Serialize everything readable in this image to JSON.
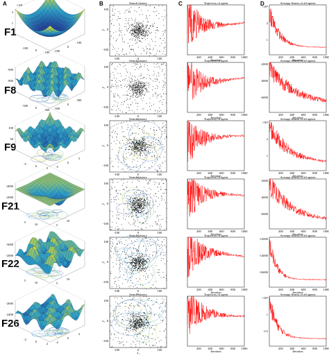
{
  "column_letters": [
    "A",
    "B",
    "C",
    "D"
  ],
  "rows": [
    "F1",
    "F8",
    "F9",
    "F21",
    "F22",
    "F26"
  ],
  "panel_titles": {
    "history": "Search history",
    "trajectory": "Trajectory of agent",
    "average": "Average fitness of all agents"
  },
  "axis_labels": {
    "iteration": "Iteration",
    "x1": "x₁",
    "x2": "x₂"
  },
  "colors": {
    "line": "#ff0000",
    "scatter": "#000000",
    "surface_low": "#1a2a8a",
    "surface_mid": "#2aa0c8",
    "surface_high": "#f5e61e"
  },
  "chart_data": [
    {
      "type": "surface",
      "row": "F1",
      "zlabel_exp": "×10⁴",
      "z_ticks": [
        "2",
        "1"
      ],
      "xy_ticks": [
        "-100",
        "0",
        "100"
      ]
    },
    {
      "type": "surface",
      "row": "F8",
      "z_ticks": [
        "-900",
        "-800"
      ],
      "xy_ticks": [
        "-500",
        "0",
        "500"
      ]
    },
    {
      "type": "surface",
      "row": "F9",
      "z_ticks": [
        "100",
        "50"
      ],
      "xy_ticks": [
        "-5",
        "0",
        "5"
      ]
    },
    {
      "type": "surface",
      "row": "F21",
      "z_ticks": [
        "-4000",
        "-2000"
      ],
      "xy_ticks": [
        "5",
        "10"
      ]
    },
    {
      "type": "surface",
      "row": "F22",
      "z_ticks": [
        "-3000",
        "-2000"
      ],
      "xy_ticks": [
        "5",
        "10"
      ]
    },
    {
      "type": "surface",
      "row": "F26",
      "z_ticks": [
        "-2600",
        "-2400"
      ],
      "xy_ticks": [
        "-2",
        "0",
        "2"
      ]
    },
    {
      "type": "scatter",
      "role": "search-history",
      "x_ticks": [
        "-100",
        "0",
        "100"
      ],
      "y_ticks": [
        "-100",
        "0",
        "100"
      ],
      "xlim": [
        -100,
        100
      ],
      "ylim": [
        -100,
        100
      ]
    },
    {
      "type": "line",
      "role": "trajectory",
      "x_ticks": [
        "200",
        "400",
        "600",
        "800",
        "1000"
      ],
      "xlim": [
        0,
        1000
      ]
    },
    {
      "type": "line",
      "role": "average-fitness",
      "x_ticks": [
        "200",
        "400",
        "600",
        "800",
        "1000"
      ],
      "xlim": [
        0,
        1000
      ],
      "rows": [
        {
          "row": "F1",
          "y_ticks": [
            "×10⁴",
            "2",
            "1"
          ]
        },
        {
          "row": "F8",
          "y_ticks": [
            "-2000",
            "-4000",
            "-6000"
          ]
        },
        {
          "row": "F9",
          "y_ticks": [
            "×10⁴",
            "2",
            "1"
          ]
        },
        {
          "row": "F21",
          "y_ticks": [
            "-2000",
            "-4000",
            "-6000"
          ]
        },
        {
          "row": "F22",
          "y_ticks": [
            "-12000",
            "-14000",
            "-16000"
          ]
        },
        {
          "row": "F26",
          "y_ticks": [
            "×10⁴",
            "1",
            "0.5"
          ]
        }
      ]
    }
  ]
}
